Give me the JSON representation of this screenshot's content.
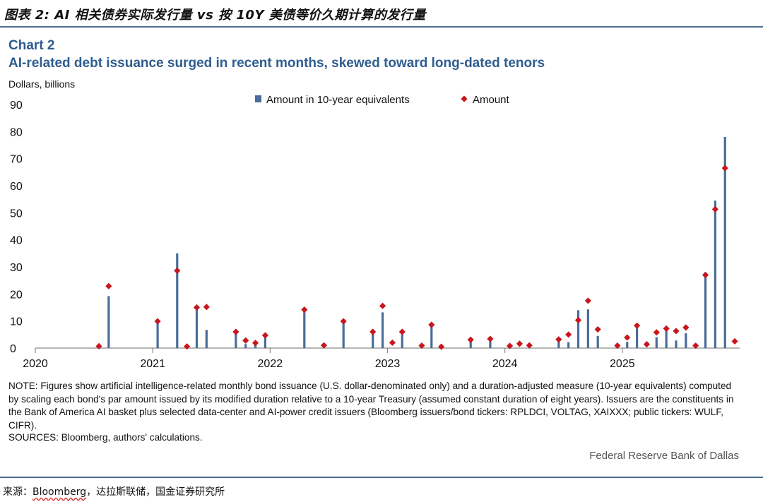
{
  "figure_title": "图表 2:  AI 相关债券实际发行量 vs 按 10Y 美债等价久期计算的发行量",
  "chart_label": "Chart 2",
  "chart_subtitle": "AI-related debt issuance surged in recent months, skewed toward long-dated tenors",
  "units_label": "Dollars, billions",
  "note": "NOTE: Figures show artificial intelligence-related monthly bond issuance (U.S. dollar-denominated only) and a duration-adjusted measure (10-year equivalents) computed by scaling each bond's par amount issued by its modified duration relative to a 10-year Treasury (assumed constant duration of eight years). Issuers are the constituents in the Bank of America AI basket plus selected data-center and AI-power credit issuers (Bloomberg issuers/bond tickers: RPLDCI, VOLTAG, XAIXXX; public tickers: WULF, CIFR).",
  "sources": "SOURCES: Bloomberg, authors' calculations.",
  "credit": "Federal Reserve Bank of Dallas",
  "source_line": {
    "prefix": "来源：",
    "underlined": "Bloomberg",
    "rest": "，达拉斯联储，国金证券研究所"
  },
  "colors": {
    "bar": "#4a6c98",
    "marker": "#c8161d",
    "title_blue": "#2f5d8f",
    "rule": "#4a6c93"
  },
  "chart_data": {
    "type": "bar",
    "ylabel": "Dollars, billions",
    "ylim": [
      0,
      90
    ],
    "y_ticks": [
      0,
      10,
      20,
      30,
      40,
      50,
      60,
      70,
      80,
      90
    ],
    "x_ticks": [
      "2020",
      "2021",
      "2022",
      "2023",
      "2024",
      "2025"
    ],
    "x_range": [
      "2020-01",
      "2025-12"
    ],
    "grid": false,
    "legend": [
      "Amount in 10-year equivalents",
      "Amount"
    ],
    "legend_placement": "top-center",
    "series": [
      {
        "name": "Amount in 10-year equivalents",
        "style": "bar",
        "points": [
          {
            "x": "2020-08",
            "y": 19.2
          },
          {
            "x": "2021-01",
            "y": 9.4
          },
          {
            "x": "2021-03",
            "y": 35.0
          },
          {
            "x": "2021-05",
            "y": 14.5
          },
          {
            "x": "2021-06",
            "y": 6.7
          },
          {
            "x": "2021-09",
            "y": 5.5
          },
          {
            "x": "2021-10",
            "y": 1.5
          },
          {
            "x": "2021-11",
            "y": 1.4
          },
          {
            "x": "2021-12",
            "y": 4.2
          },
          {
            "x": "2022-04",
            "y": 14.0
          },
          {
            "x": "2022-08",
            "y": 9.8
          },
          {
            "x": "2022-11",
            "y": 5.8
          },
          {
            "x": "2022-12",
            "y": 13.2
          },
          {
            "x": "2023-02",
            "y": 5.4
          },
          {
            "x": "2023-05",
            "y": 8.2
          },
          {
            "x": "2023-09",
            "y": 3.0
          },
          {
            "x": "2023-11",
            "y": 3.2
          },
          {
            "x": "2024-06",
            "y": 3.0
          },
          {
            "x": "2024-07",
            "y": 2.2
          },
          {
            "x": "2024-08",
            "y": 14.0
          },
          {
            "x": "2024-09",
            "y": 14.3
          },
          {
            "x": "2024-10",
            "y": 4.5
          },
          {
            "x": "2025-01",
            "y": 2.3
          },
          {
            "x": "2025-02",
            "y": 7.5
          },
          {
            "x": "2025-04",
            "y": 4.0
          },
          {
            "x": "2025-05",
            "y": 7.0
          },
          {
            "x": "2025-06",
            "y": 2.8
          },
          {
            "x": "2025-07",
            "y": 5.5
          },
          {
            "x": "2025-09",
            "y": 28.0
          },
          {
            "x": "2025-10",
            "y": 54.5
          },
          {
            "x": "2025-11",
            "y": 78.0
          }
        ]
      },
      {
        "name": "Amount",
        "style": "marker",
        "points": [
          {
            "x": "2020-07",
            "y": 0.7
          },
          {
            "x": "2020-08",
            "y": 22.9
          },
          {
            "x": "2021-01",
            "y": 9.9
          },
          {
            "x": "2021-03",
            "y": 28.6
          },
          {
            "x": "2021-04",
            "y": 0.6
          },
          {
            "x": "2021-05",
            "y": 15.0
          },
          {
            "x": "2021-06",
            "y": 15.2
          },
          {
            "x": "2021-09",
            "y": 6.0
          },
          {
            "x": "2021-10",
            "y": 2.8
          },
          {
            "x": "2021-11",
            "y": 1.9
          },
          {
            "x": "2021-12",
            "y": 4.7
          },
          {
            "x": "2022-04",
            "y": 14.2
          },
          {
            "x": "2022-06",
            "y": 1.0
          },
          {
            "x": "2022-08",
            "y": 9.9
          },
          {
            "x": "2022-11",
            "y": 6.0
          },
          {
            "x": "2022-12",
            "y": 15.6
          },
          {
            "x": "2023-01",
            "y": 2.0
          },
          {
            "x": "2023-02",
            "y": 6.0
          },
          {
            "x": "2023-04",
            "y": 0.9
          },
          {
            "x": "2023-05",
            "y": 8.6
          },
          {
            "x": "2023-06",
            "y": 0.5
          },
          {
            "x": "2023-09",
            "y": 3.1
          },
          {
            "x": "2023-11",
            "y": 3.4
          },
          {
            "x": "2024-01",
            "y": 0.8
          },
          {
            "x": "2024-02",
            "y": 1.6
          },
          {
            "x": "2024-03",
            "y": 1.0
          },
          {
            "x": "2024-06",
            "y": 3.2
          },
          {
            "x": "2024-07",
            "y": 5.0
          },
          {
            "x": "2024-08",
            "y": 10.3
          },
          {
            "x": "2024-09",
            "y": 17.5
          },
          {
            "x": "2024-10",
            "y": 6.9
          },
          {
            "x": "2024-12",
            "y": 0.9
          },
          {
            "x": "2025-01",
            "y": 3.9
          },
          {
            "x": "2025-02",
            "y": 8.3
          },
          {
            "x": "2025-03",
            "y": 1.4
          },
          {
            "x": "2025-04",
            "y": 5.8
          },
          {
            "x": "2025-05",
            "y": 7.2
          },
          {
            "x": "2025-06",
            "y": 6.3
          },
          {
            "x": "2025-07",
            "y": 7.6
          },
          {
            "x": "2025-08",
            "y": 0.9
          },
          {
            "x": "2025-09",
            "y": 27.0
          },
          {
            "x": "2025-10",
            "y": 51.3
          },
          {
            "x": "2025-11",
            "y": 66.5
          },
          {
            "x": "2025-12",
            "y": 2.5
          }
        ]
      }
    ]
  }
}
